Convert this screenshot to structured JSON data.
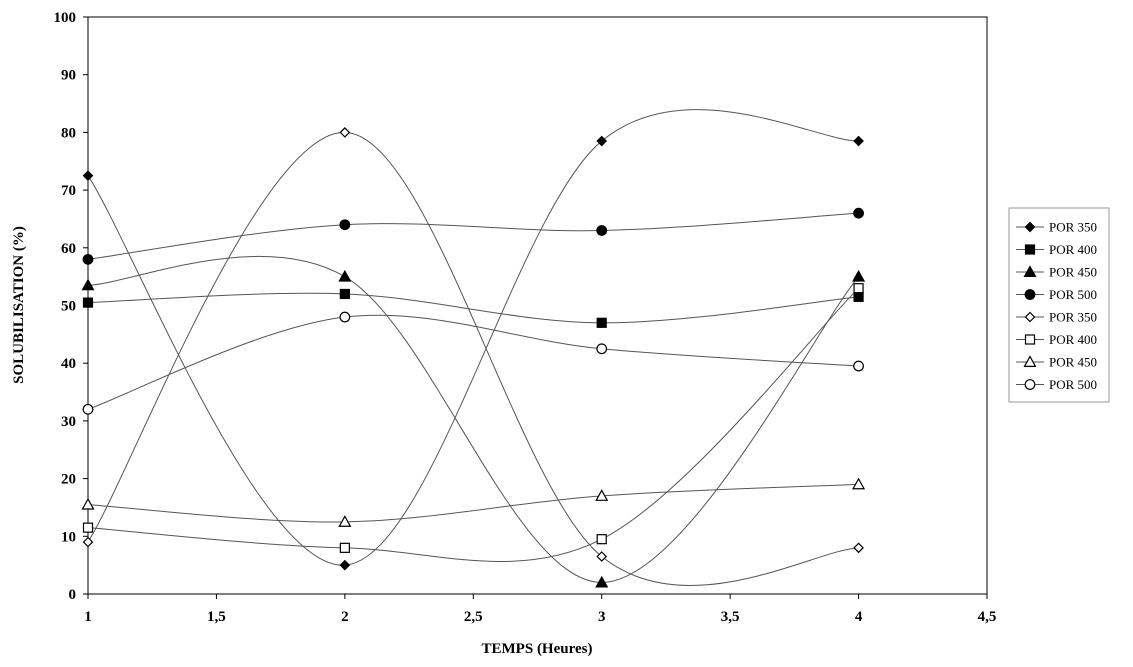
{
  "chart_data": {
    "type": "line",
    "title": "",
    "xlabel": "TEMPS (Heures)",
    "ylabel": "SOLUBILISATION (%)",
    "xlim": [
      1,
      4.5
    ],
    "ylim": [
      0,
      100
    ],
    "x_ticks": [
      "1",
      "1,5",
      "2",
      "2,5",
      "3",
      "3,5",
      "4",
      "4,5"
    ],
    "y_ticks": [
      "0",
      "10",
      "20",
      "30",
      "40",
      "50",
      "60",
      "70",
      "80",
      "90",
      "100"
    ],
    "x_tick_values": [
      1,
      1.5,
      2,
      2.5,
      3,
      3.5,
      4,
      4.5
    ],
    "y_tick_values": [
      0,
      10,
      20,
      30,
      40,
      50,
      60,
      70,
      80,
      90,
      100
    ],
    "grid": false,
    "legend_position": "right",
    "smooth": true,
    "x": [
      1,
      2,
      3,
      4
    ],
    "series": [
      {
        "name": "POR 350",
        "marker": "diamond",
        "filled": true,
        "values": [
          72.5,
          5,
          78.5,
          78.5
        ]
      },
      {
        "name": "POR 400",
        "marker": "square",
        "filled": true,
        "values": [
          50.5,
          52,
          47,
          51.5
        ]
      },
      {
        "name": "POR 450",
        "marker": "triangle",
        "filled": true,
        "values": [
          53.5,
          55,
          2,
          55
        ]
      },
      {
        "name": "POR 500",
        "marker": "circle",
        "filled": true,
        "values": [
          58,
          64,
          63,
          66
        ]
      },
      {
        "name": "POR 350",
        "marker": "diamond",
        "filled": false,
        "values": [
          9,
          80,
          6.5,
          8
        ]
      },
      {
        "name": "POR 400",
        "marker": "square",
        "filled": false,
        "values": [
          11.5,
          8,
          9.5,
          53
        ]
      },
      {
        "name": "POR 450",
        "marker": "triangle",
        "filled": false,
        "values": [
          15.5,
          12.5,
          17,
          19
        ]
      },
      {
        "name": "POR 500",
        "marker": "circle",
        "filled": false,
        "values": [
          32,
          48,
          42.5,
          39.5
        ]
      }
    ]
  }
}
